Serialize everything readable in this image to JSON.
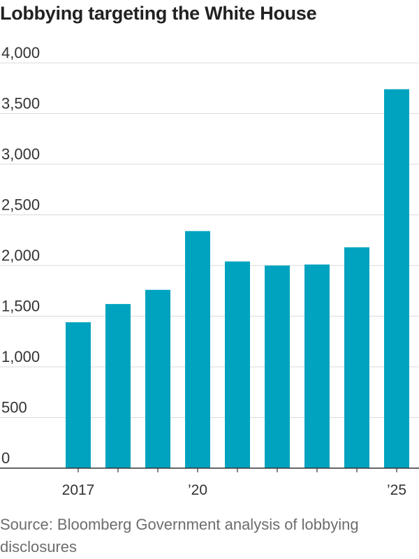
{
  "title": "Lobbying targeting the White House",
  "source": "Source: Bloomberg Government analysis of lobbying disclosures",
  "colors": {
    "bar": "#00A3BF",
    "grid": "#d9d9d9",
    "axis": "#333333"
  },
  "chart_data": {
    "type": "bar",
    "title": "Lobbying targeting the White House",
    "xlabel": "",
    "ylabel": "",
    "categories": [
      "2017",
      "2018",
      "2019",
      "2020",
      "2021",
      "2022",
      "2023",
      "2024",
      "2025"
    ],
    "values": [
      1440,
      1620,
      1760,
      2340,
      2040,
      2000,
      2010,
      2180,
      3740
    ],
    "x_tick_labels": [
      {
        "category": "2017",
        "label": "2017"
      },
      {
        "category": "2020",
        "label": "’20"
      },
      {
        "category": "2025",
        "label": "’25"
      }
    ],
    "yticks": [
      0,
      500,
      1000,
      1500,
      2000,
      2500,
      3000,
      3500,
      4000
    ],
    "ytick_labels": [
      "0",
      "500",
      "1,000",
      "1,500",
      "2,000",
      "2,500",
      "3,000",
      "3,500",
      "4,000"
    ],
    "ylim": [
      0,
      4000
    ],
    "grid": true,
    "legend": "none"
  }
}
